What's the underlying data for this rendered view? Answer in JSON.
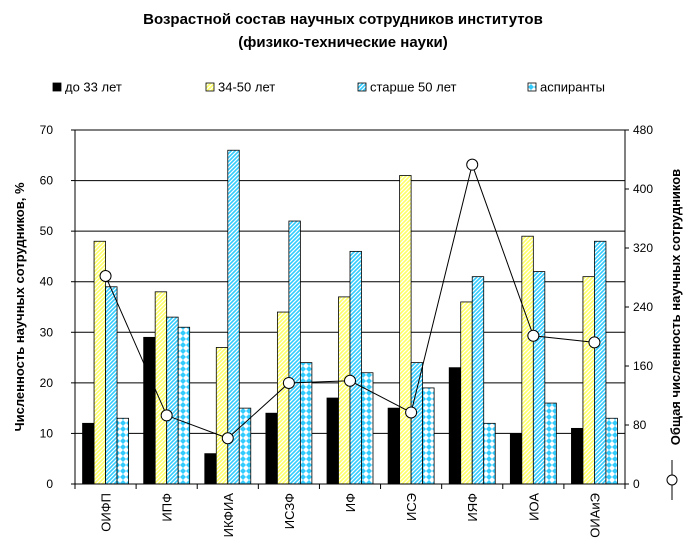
{
  "chart_data": {
    "type": "bar",
    "title": "Возрастной состав научных сотрудников институтов",
    "subtitle": "(физико-технические науки)",
    "ylabel": "Численность научных сотрудников, %",
    "y2label": "Общая численность научных сотрудников",
    "ylim": [
      0,
      70
    ],
    "y2lim": [
      0,
      480
    ],
    "yticks": [
      "0",
      "10",
      "20",
      "30",
      "40",
      "50",
      "60",
      "70"
    ],
    "y2ticks": [
      "0",
      "80",
      "160",
      "240",
      "320",
      "400",
      "480"
    ],
    "grid": true,
    "legend_position": "top",
    "categories": [
      "ОИФП",
      "ИПФ",
      "ИКФИА",
      "ИСЗФ",
      "ИФ",
      "ИСЭ",
      "ИЯФ",
      "ИОА",
      "ОИАиЭ"
    ],
    "series": [
      {
        "name": "до 33 лет",
        "values": [
          12,
          29,
          6,
          14,
          17,
          15,
          23,
          10,
          11
        ],
        "color": "#000000",
        "pattern": "solid"
      },
      {
        "name": "34-50 лет",
        "values": [
          48,
          38,
          27,
          34,
          37,
          61,
          36,
          49,
          41
        ],
        "color": "#ffff66",
        "pattern": "diagonal"
      },
      {
        "name": "старше 50 лет",
        "values": [
          39,
          33,
          66,
          52,
          46,
          24,
          41,
          42,
          48
        ],
        "color": "#33ccff",
        "pattern": "diagonal"
      },
      {
        "name": "аспиранты",
        "values": [
          13,
          31,
          15,
          24,
          22,
          19,
          12,
          16,
          13
        ],
        "color": "#33ccff",
        "pattern": "diamonds"
      }
    ],
    "line_series": {
      "axis": "right",
      "values": [
        282,
        93,
        62,
        137,
        140,
        97,
        433,
        201,
        192
      ]
    }
  }
}
